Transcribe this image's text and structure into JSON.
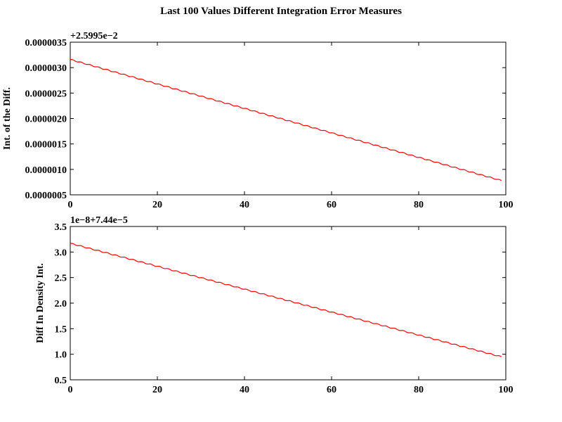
{
  "chart_data": [
    {
      "type": "line",
      "title": "Last 100 Values Different Integration Error Measures",
      "xlabel": "",
      "ylabel": "Int. of the Diff.",
      "offset_label": "+2.5995e−2",
      "xlim": [
        0,
        100
      ],
      "ylim": [
        5e-07,
        3.5e-06
      ],
      "x_ticks": [
        "0",
        "20",
        "40",
        "60",
        "80",
        "100"
      ],
      "y_ticks": [
        "0.0000005",
        "0.0000010",
        "0.0000015",
        "0.0000020",
        "0.0000025",
        "0.0000030",
        "0.0000035"
      ],
      "grid": false,
      "series": [
        {
          "color": "#ff0000",
          "x_start": 0,
          "x_end": 99,
          "y_start": 3.16e-06,
          "y_end": 7.8e-07
        }
      ]
    },
    {
      "type": "line",
      "title": "",
      "xlabel": "",
      "ylabel": "Diff In Density Int.",
      "offset_label": "1e−8+7.44e−5",
      "xlim": [
        0,
        100
      ],
      "ylim": [
        0.5,
        3.5
      ],
      "x_ticks": [
        "0",
        "20",
        "40",
        "60",
        "80",
        "100"
      ],
      "y_ticks": [
        "0.5",
        "1.0",
        "1.5",
        "2.0",
        "2.5",
        "3.0",
        "3.5"
      ],
      "grid": false,
      "series": [
        {
          "color": "#ff0000",
          "x_start": 0,
          "x_end": 99,
          "y_start": 3.17,
          "y_end": 0.95
        }
      ]
    }
  ]
}
